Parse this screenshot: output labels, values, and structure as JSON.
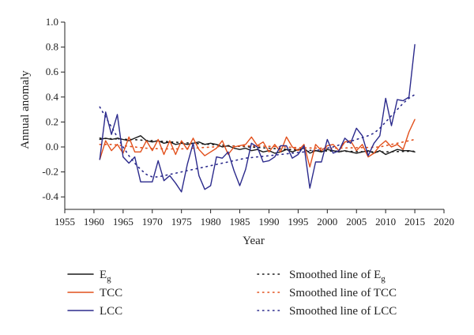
{
  "chart_data": {
    "type": "line",
    "xlabel": "Year",
    "ylabel": "Annual anomaly",
    "xlim": [
      1955,
      2020
    ],
    "ylim": [
      -0.5,
      1.0
    ],
    "xticks": [
      1955,
      1960,
      1965,
      1970,
      1975,
      1980,
      1985,
      1990,
      1995,
      2000,
      2005,
      2010,
      2015,
      2020
    ],
    "yticks": [
      -0.4,
      -0.2,
      0.0,
      0.2,
      0.4,
      0.6,
      0.8,
      1.0
    ],
    "ytick_labels": [
      "-0.4",
      "-0.2",
      "0.0",
      "0.2",
      "0.4",
      "0.6",
      "0.8",
      "1.0"
    ],
    "grid": false,
    "legend_position": "bottom",
    "x": [
      1961,
      1962,
      1963,
      1964,
      1965,
      1966,
      1967,
      1968,
      1969,
      1970,
      1971,
      1972,
      1973,
      1974,
      1975,
      1976,
      1977,
      1978,
      1979,
      1980,
      1981,
      1982,
      1983,
      1984,
      1985,
      1986,
      1987,
      1988,
      1989,
      1990,
      1991,
      1992,
      1993,
      1994,
      1995,
      1996,
      1997,
      1998,
      1999,
      2000,
      2001,
      2002,
      2003,
      2004,
      2005,
      2006,
      2007,
      2008,
      2009,
      2010,
      2011,
      2012,
      2013,
      2014,
      2015
    ],
    "series": [
      {
        "name": "E",
        "name_sub": "g",
        "color": "#1a1a1a",
        "style": "solid",
        "values": [
          0.06,
          0.07,
          0.06,
          0.07,
          0.06,
          0.05,
          0.07,
          0.09,
          0.05,
          0.04,
          0.05,
          0.03,
          0.04,
          0.02,
          0.03,
          0.02,
          0.03,
          0.04,
          0.02,
          0.03,
          0.02,
          0.0,
          0.01,
          -0.01,
          -0.02,
          -0.01,
          -0.03,
          -0.02,
          -0.04,
          -0.03,
          -0.05,
          -0.04,
          -0.02,
          -0.04,
          -0.02,
          -0.01,
          -0.05,
          -0.03,
          -0.04,
          -0.02,
          -0.03,
          -0.04,
          -0.03,
          -0.04,
          -0.05,
          -0.04,
          -0.03,
          -0.05,
          -0.03,
          -0.06,
          -0.04,
          -0.02,
          -0.03,
          -0.03,
          -0.04
        ]
      },
      {
        "name": "TCC",
        "color": "#e2501c",
        "style": "solid",
        "values": [
          -0.1,
          0.05,
          -0.03,
          0.02,
          -0.05,
          0.08,
          -0.04,
          -0.04,
          0.05,
          -0.03,
          0.06,
          -0.06,
          0.05,
          -0.06,
          0.05,
          -0.02,
          0.07,
          -0.02,
          -0.07,
          -0.04,
          -0.01,
          0.05,
          -0.06,
          0.0,
          0.01,
          0.02,
          0.08,
          0.01,
          0.04,
          -0.04,
          0.02,
          -0.04,
          0.08,
          0.0,
          -0.03,
          0.02,
          -0.16,
          0.02,
          -0.03,
          0.01,
          0.02,
          -0.03,
          0.04,
          0.05,
          -0.03,
          0.02,
          -0.08,
          -0.05,
          0.01,
          0.05,
          0.0,
          0.02,
          -0.02,
          0.12,
          0.22
        ]
      },
      {
        "name": "LCC",
        "color": "#2b2a8c",
        "style": "solid",
        "values": [
          -0.1,
          0.28,
          0.1,
          0.26,
          -0.08,
          -0.13,
          -0.08,
          -0.28,
          -0.28,
          -0.28,
          -0.11,
          -0.27,
          -0.23,
          -0.29,
          -0.36,
          -0.14,
          0.03,
          -0.23,
          -0.34,
          -0.31,
          -0.08,
          -0.09,
          -0.04,
          -0.19,
          -0.31,
          -0.18,
          0.03,
          0.0,
          -0.12,
          -0.11,
          -0.08,
          0.01,
          0.01,
          -0.09,
          -0.06,
          0.01,
          -0.33,
          -0.12,
          -0.12,
          0.06,
          -0.05,
          -0.03,
          0.07,
          0.03,
          0.15,
          0.09,
          -0.07,
          0.03,
          0.09,
          0.39,
          0.17,
          0.38,
          0.37,
          0.4,
          0.82
        ]
      },
      {
        "name": "Smoothed line of E",
        "name_sub": "g",
        "color": "#1a1a1a",
        "style": "dotted",
        "values": [
          0.07,
          0.068,
          0.066,
          0.064,
          0.062,
          0.06,
          0.058,
          0.055,
          0.052,
          0.05,
          0.047,
          0.044,
          0.041,
          0.038,
          0.035,
          0.032,
          0.029,
          0.026,
          0.023,
          0.02,
          0.017,
          0.014,
          0.011,
          0.008,
          0.005,
          0.002,
          -0.001,
          -0.004,
          -0.007,
          -0.01,
          -0.013,
          -0.016,
          -0.019,
          -0.021,
          -0.023,
          -0.025,
          -0.027,
          -0.029,
          -0.031,
          -0.032,
          -0.033,
          -0.034,
          -0.035,
          -0.036,
          -0.037,
          -0.038,
          -0.039,
          -0.039,
          -0.039,
          -0.039,
          -0.038,
          -0.037,
          -0.036,
          -0.035,
          -0.034
        ]
      },
      {
        "name": "Smoothed line of TCC",
        "color": "#e2501c",
        "style": "dotted",
        "values": [
          0.02,
          0.02,
          0.02,
          0.015,
          0.01,
          0.005,
          0.0,
          -0.005,
          -0.01,
          -0.012,
          -0.014,
          -0.015,
          -0.016,
          -0.016,
          -0.015,
          -0.013,
          -0.01,
          -0.007,
          -0.004,
          -0.001,
          0.002,
          0.004,
          0.006,
          0.007,
          0.008,
          0.008,
          0.008,
          0.007,
          0.006,
          0.005,
          0.003,
          0.001,
          -0.001,
          -0.003,
          -0.005,
          -0.007,
          -0.008,
          -0.009,
          -0.01,
          -0.01,
          -0.01,
          -0.009,
          -0.008,
          -0.007,
          -0.006,
          -0.005,
          -0.004,
          -0.002,
          0.0,
          0.01,
          0.02,
          0.03,
          0.04,
          0.05,
          0.06
        ]
      },
      {
        "name": "Smoothed line of LCC",
        "color": "#2b2a8c",
        "style": "dotted",
        "values": [
          0.32,
          0.24,
          0.16,
          0.08,
          0.0,
          -0.07,
          -0.13,
          -0.18,
          -0.22,
          -0.24,
          -0.24,
          -0.23,
          -0.22,
          -0.21,
          -0.2,
          -0.19,
          -0.18,
          -0.17,
          -0.16,
          -0.15,
          -0.14,
          -0.13,
          -0.12,
          -0.11,
          -0.1,
          -0.09,
          -0.085,
          -0.08,
          -0.075,
          -0.07,
          -0.065,
          -0.06,
          -0.055,
          -0.05,
          -0.045,
          -0.04,
          -0.035,
          -0.03,
          -0.02,
          -0.01,
          0.0,
          0.015,
          0.03,
          0.045,
          0.06,
          0.075,
          0.09,
          0.11,
          0.15,
          0.2,
          0.25,
          0.3,
          0.35,
          0.39,
          0.42
        ]
      }
    ]
  }
}
